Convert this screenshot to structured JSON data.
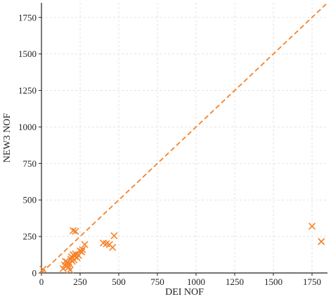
{
  "chart_data": {
    "type": "scatter",
    "title": "",
    "xlabel": "DEI NOF",
    "ylabel": "NEW3 NOF",
    "xlim": [
      0,
      1850
    ],
    "ylim": [
      0,
      1850
    ],
    "x_ticks": [
      0,
      250,
      500,
      750,
      1000,
      1250,
      1500,
      1750
    ],
    "y_ticks": [
      0,
      250,
      500,
      750,
      1000,
      1250,
      1500,
      1750
    ],
    "grid": true,
    "marker": "x",
    "color": "#f5832a",
    "reference_line": {
      "x": [
        0,
        1850
      ],
      "y": [
        0,
        1850
      ],
      "style": "dashed"
    },
    "points": [
      {
        "x": 10,
        "y": 25
      },
      {
        "x": 140,
        "y": 30
      },
      {
        "x": 150,
        "y": 55
      },
      {
        "x": 155,
        "y": 80
      },
      {
        "x": 160,
        "y": 45
      },
      {
        "x": 165,
        "y": 75
      },
      {
        "x": 170,
        "y": 60
      },
      {
        "x": 175,
        "y": 40
      },
      {
        "x": 180,
        "y": 65
      },
      {
        "x": 185,
        "y": 20
      },
      {
        "x": 190,
        "y": 95
      },
      {
        "x": 195,
        "y": 110
      },
      {
        "x": 200,
        "y": 80
      },
      {
        "x": 205,
        "y": 125
      },
      {
        "x": 210,
        "y": 90
      },
      {
        "x": 215,
        "y": 115
      },
      {
        "x": 220,
        "y": 130
      },
      {
        "x": 230,
        "y": 105
      },
      {
        "x": 240,
        "y": 120
      },
      {
        "x": 250,
        "y": 150
      },
      {
        "x": 260,
        "y": 145
      },
      {
        "x": 265,
        "y": 160
      },
      {
        "x": 280,
        "y": 195
      },
      {
        "x": 205,
        "y": 290
      },
      {
        "x": 220,
        "y": 285
      },
      {
        "x": 400,
        "y": 205
      },
      {
        "x": 420,
        "y": 200
      },
      {
        "x": 440,
        "y": 195
      },
      {
        "x": 460,
        "y": 175
      },
      {
        "x": 470,
        "y": 255
      },
      {
        "x": 1750,
        "y": 320
      },
      {
        "x": 1810,
        "y": 215
      }
    ]
  }
}
